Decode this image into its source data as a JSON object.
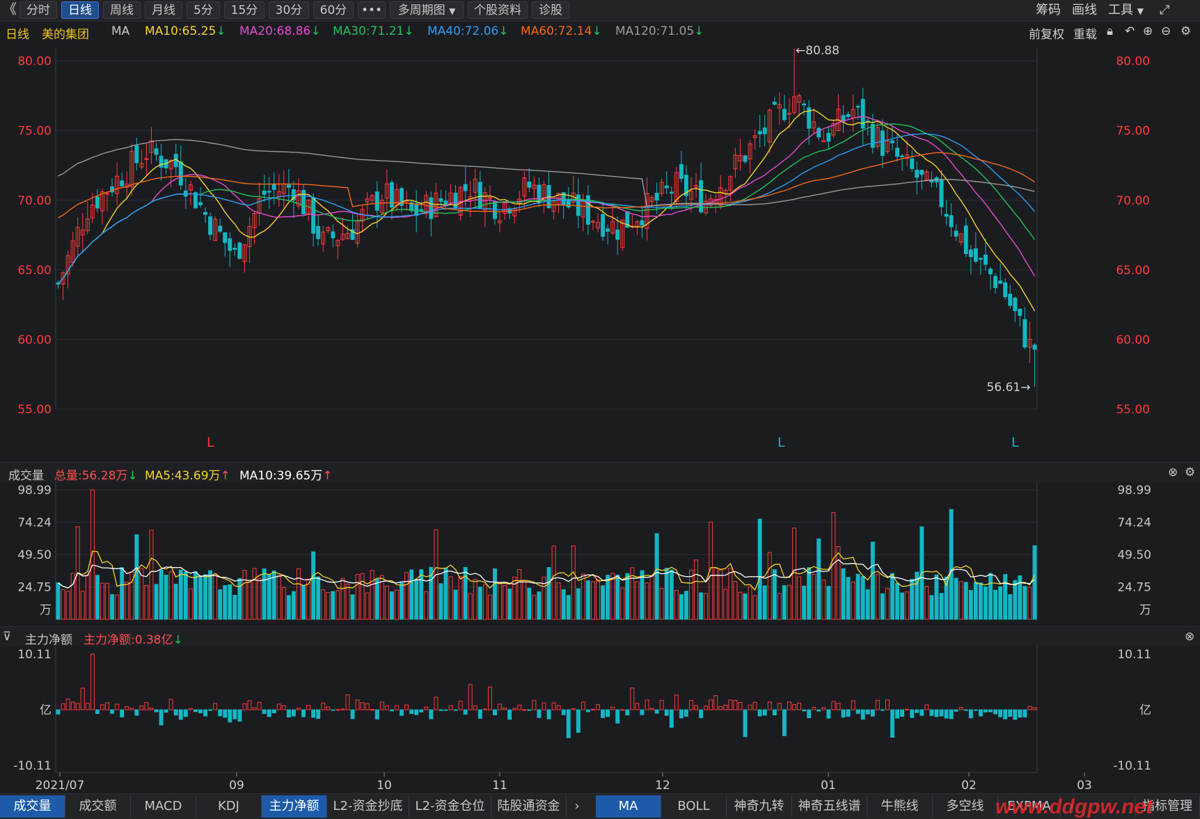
{
  "toolbar": {
    "back_icon": "double-chevron-left-icon",
    "periods": [
      "分时",
      "日线",
      "周线",
      "月线",
      "5分",
      "15分",
      "30分",
      "60分",
      "•••"
    ],
    "active_period": "日线",
    "multi_period": "多周期图",
    "stock_info": "个股资料",
    "diagnose": "诊股",
    "chips": "筹码",
    "draw": "画线",
    "tools": "工具",
    "fullscreen_icon": "fullscreen-icon"
  },
  "ma_bar": {
    "period": "日线",
    "stock": "美的集团",
    "ind": "MA",
    "ma10": "MA10:65.25",
    "ma20": "MA20:68.86",
    "ma30": "MA30:71.21",
    "ma40": "MA40:72.06",
    "ma60": "MA60:72.14",
    "ma120": "MA120:71.05",
    "fq": "前复权",
    "reload": "重载",
    "colors": {
      "ma10": "#f3d52a",
      "ma20": "#e74bd0",
      "ma30": "#22c25a",
      "ma40": "#2d9ef5",
      "ma60": "#f26a1b",
      "ma120": "#9a9a9a"
    }
  },
  "volume_head": {
    "title": "成交量",
    "total": "总量:56.28万",
    "ma5": "MA5:43.69万",
    "ma10": "MA10:39.65万"
  },
  "flow_head": {
    "title": "主力净额",
    "value": "主力净额:0.38亿"
  },
  "bottom_tabs_left": [
    "成交量",
    "成交额",
    "MACD",
    "KDJ",
    "主力净额",
    "L2-资金抄底",
    "L2-资金仓位",
    "陆股通资金"
  ],
  "bottom_tabs_right": [
    "MA",
    "BOLL",
    "神奇九转",
    "神奇五线谱",
    "牛熊线",
    "多空线",
    "EXPMA"
  ],
  "bottom_manage": "指标管理",
  "watermark": "www.ddgpw.net",
  "chart_data": [
    {
      "type": "candlestick",
      "title": "美的集团 日线",
      "y_ticks": [
        "80.00",
        "75.00",
        "70.00",
        "65.00",
        "60.00",
        "55.00"
      ],
      "ylim": [
        55,
        80.88
      ],
      "high_label": "←80.88",
      "low_label": "56.61→",
      "markers": [
        "L",
        "L",
        "L"
      ],
      "x_ticks": [
        "2021/07",
        "09",
        "10",
        "11",
        "12",
        "01",
        "02",
        "03"
      ],
      "ma_last": {
        "MA10": 65.25,
        "MA20": 68.86,
        "MA30": 71.21,
        "MA40": 72.06,
        "MA60": 72.14,
        "MA120": 71.05
      },
      "grid": true
    },
    {
      "type": "bar",
      "title": "成交量",
      "y_ticks": [
        "98.99",
        "74.24",
        "49.50",
        "24.75"
      ],
      "unit": "万",
      "ylim": [
        0,
        98.99
      ],
      "last": {
        "total": 56.28,
        "MA5": 43.69,
        "MA10": 39.65
      }
    },
    {
      "type": "bar",
      "title": "主力净额",
      "y_ticks": [
        "10.11",
        "-10.11"
      ],
      "unit": "亿",
      "ylim": [
        -10.11,
        10.11
      ],
      "last": 0.38
    }
  ]
}
